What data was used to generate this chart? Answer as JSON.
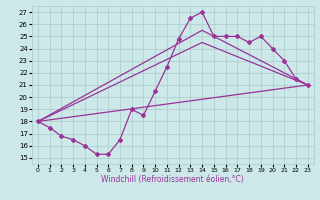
{
  "xlabel": "Windchill (Refroidissement éolien,°C)",
  "bg_color": "#cce8e8",
  "grid_color": "#aacccc",
  "line_color": "#993399",
  "marker": "D",
  "markersize": 2.0,
  "linewidth": 0.9,
  "xlim": [
    -0.5,
    23.5
  ],
  "ylim": [
    14.5,
    27.5
  ],
  "yticks": [
    15,
    16,
    17,
    18,
    19,
    20,
    21,
    22,
    23,
    24,
    25,
    26,
    27
  ],
  "xticks": [
    0,
    1,
    2,
    3,
    4,
    5,
    6,
    7,
    8,
    9,
    10,
    11,
    12,
    13,
    14,
    15,
    16,
    17,
    18,
    19,
    20,
    21,
    22,
    23
  ],
  "curve1_x": [
    0,
    1,
    2,
    3,
    4,
    5,
    6,
    7,
    8,
    9,
    10,
    11,
    12,
    13,
    14,
    15,
    16,
    17,
    18,
    19,
    20,
    21,
    22,
    23
  ],
  "curve1_y": [
    18.0,
    17.5,
    16.8,
    16.5,
    16.0,
    15.3,
    15.3,
    16.5,
    19.0,
    18.5,
    20.5,
    22.5,
    24.8,
    26.5,
    27.0,
    25.0,
    25.0,
    25.0,
    24.5,
    25.0,
    24.0,
    23.0,
    21.5,
    21.0
  ],
  "line1_x": [
    0,
    23
  ],
  "line1_y": [
    18.0,
    21.0
  ],
  "line2_x": [
    0,
    14,
    23
  ],
  "line2_y": [
    18.0,
    24.5,
    21.0
  ],
  "line3_x": [
    0,
    14,
    23
  ],
  "line3_y": [
    18.0,
    25.5,
    21.0
  ]
}
